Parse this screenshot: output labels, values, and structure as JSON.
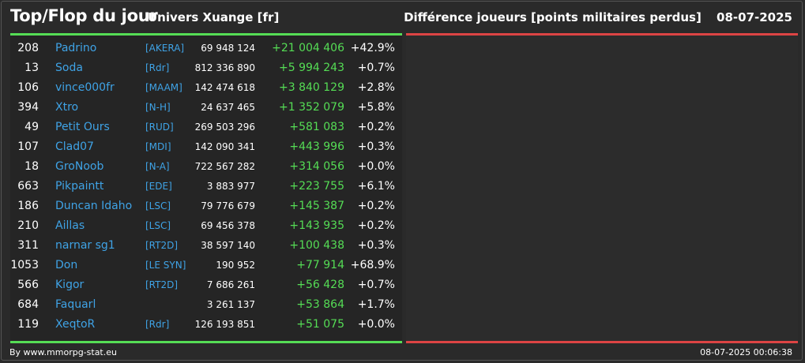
{
  "header": {
    "title": "Top/Flop du jour",
    "universe": "Univers Xuange [fr]",
    "description": "Différence joueurs [points militaires perdus]",
    "date": "08-07-2025"
  },
  "colors": {
    "accent_green": "#55dd55",
    "accent_red": "#dd4444",
    "name_blue": "#3fa3e6"
  },
  "rows": [
    {
      "rank": "208",
      "name": "Padrino",
      "ally": "[AKERA]",
      "points": "69 948 124",
      "diff": "+21 004 406",
      "pct": "+42.9%"
    },
    {
      "rank": "13",
      "name": "Soda",
      "ally": "[Rdr]",
      "points": "812 336 890",
      "diff": "+5 994 243",
      "pct": "+0.7%"
    },
    {
      "rank": "106",
      "name": "vince000fr",
      "ally": "[MAAM]",
      "points": "142 474 618",
      "diff": "+3 840 129",
      "pct": "+2.8%"
    },
    {
      "rank": "394",
      "name": "Xtro",
      "ally": "[N-H]",
      "points": "24 637 465",
      "diff": "+1 352 079",
      "pct": "+5.8%"
    },
    {
      "rank": "49",
      "name": "Petit Ours",
      "ally": "[RUD]",
      "points": "269 503 296",
      "diff": "+581 083",
      "pct": "+0.2%"
    },
    {
      "rank": "107",
      "name": "Clad07",
      "ally": "[MDI]",
      "points": "142 090 341",
      "diff": "+443 996",
      "pct": "+0.3%"
    },
    {
      "rank": "18",
      "name": "GroNoob",
      "ally": "[N-A]",
      "points": "722 567 282",
      "diff": "+314 056",
      "pct": "+0.0%"
    },
    {
      "rank": "663",
      "name": "Pikpaintt",
      "ally": "[EDE]",
      "points": "3 883 977",
      "diff": "+223 755",
      "pct": "+6.1%"
    },
    {
      "rank": "186",
      "name": "Duncan Idaho",
      "ally": "[LSC]",
      "points": "79 776 679",
      "diff": "+145 387",
      "pct": "+0.2%"
    },
    {
      "rank": "210",
      "name": "Aillas",
      "ally": "[LSC]",
      "points": "69 456 378",
      "diff": "+143 935",
      "pct": "+0.2%"
    },
    {
      "rank": "311",
      "name": "narnar sg1",
      "ally": "[RT2D]",
      "points": "38 597 140",
      "diff": "+100 438",
      "pct": "+0.3%"
    },
    {
      "rank": "1053",
      "name": "Don",
      "ally": "[LE SYN]",
      "points": "190 952",
      "diff": "+77 914",
      "pct": "+68.9%"
    },
    {
      "rank": "566",
      "name": "Kigor",
      "ally": "[RT2D]",
      "points": "7 686 261",
      "diff": "+56 428",
      "pct": "+0.7%"
    },
    {
      "rank": "684",
      "name": "Faquarl",
      "ally": "",
      "points": "3 261 137",
      "diff": "+53 864",
      "pct": "+1.7%"
    },
    {
      "rank": "119",
      "name": "XeqtoR",
      "ally": "[Rdr]",
      "points": "126 193 851",
      "diff": "+51 075",
      "pct": "+0.0%"
    }
  ],
  "footer": {
    "credit": "By www.mmorpg-stat.eu",
    "timestamp": "08-07-2025 00:06:38"
  }
}
